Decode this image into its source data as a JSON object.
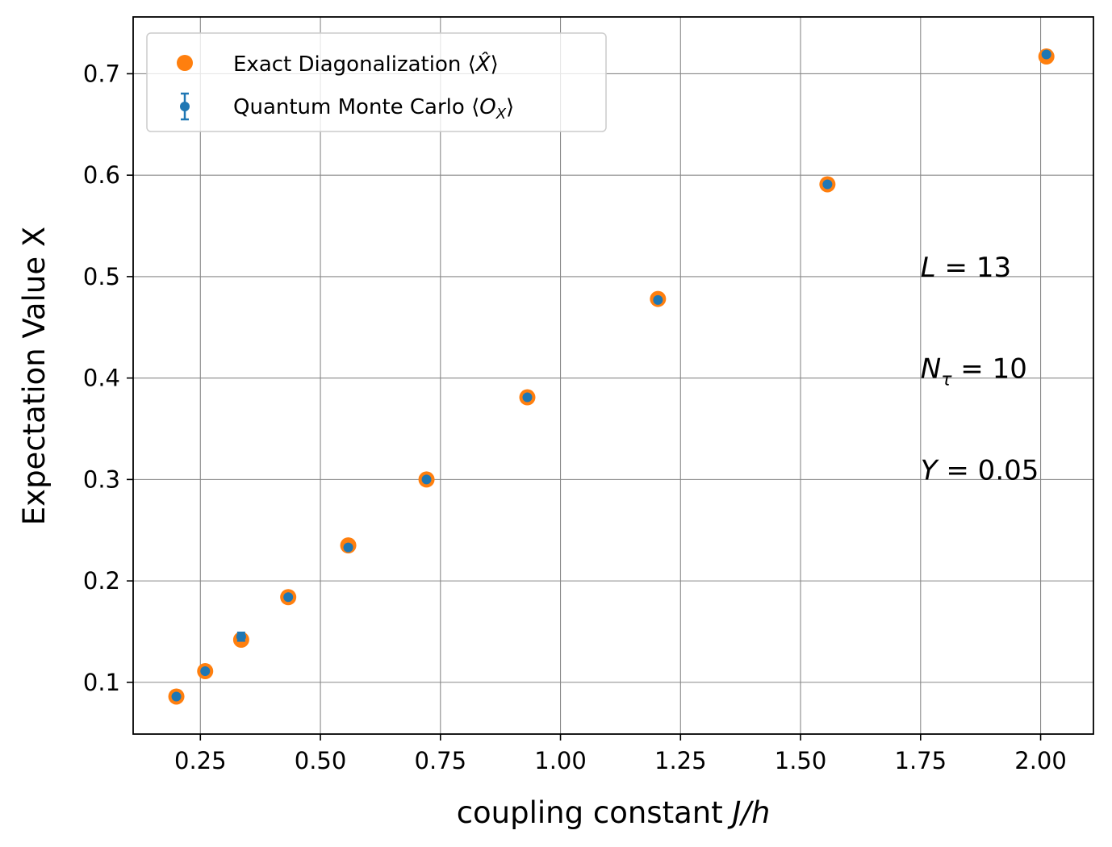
{
  "chart_data": {
    "type": "scatter",
    "xlabel": {
      "text": "coupling constant ",
      "var": "J/h"
    },
    "ylabel": "Expectation Value X",
    "xlim": [
      0.11,
      2.11
    ],
    "ylim": [
      0.049,
      0.756
    ],
    "x_ticks": [
      0.25,
      0.5,
      0.75,
      1.0,
      1.25,
      1.5,
      1.75,
      2.0
    ],
    "x_tick_labels": [
      "0.25",
      "0.50",
      "0.75",
      "1.00",
      "1.25",
      "1.50",
      "1.75",
      "2.00"
    ],
    "y_ticks": [
      0.1,
      0.2,
      0.3,
      0.4,
      0.5,
      0.6,
      0.7
    ],
    "y_tick_labels": [
      "0.1",
      "0.2",
      "0.3",
      "0.4",
      "0.5",
      "0.6",
      "0.7"
    ],
    "grid": true,
    "legend_position": "top-left",
    "series": [
      {
        "name": "Exact Diagonalization ⟨X̂⟩",
        "label_main": "Exact Diagonalization ⟨",
        "label_var": "X̂",
        "label_end": "⟩",
        "color": "#ff7f0e",
        "marker": "circle",
        "x": [
          0.2,
          0.26,
          0.335,
          0.433,
          0.558,
          0.721,
          0.931,
          1.203,
          1.556,
          2.012
        ],
        "y": [
          0.086,
          0.111,
          0.142,
          0.184,
          0.235,
          0.3,
          0.381,
          0.478,
          0.591,
          0.717
        ]
      },
      {
        "name": "Quantum Monte Carlo ⟨O_X⟩",
        "label_main": "Quantum Monte Carlo ⟨",
        "label_var": "O",
        "label_sub": "X",
        "label_end": "⟩",
        "color": "#1f77b4",
        "marker": "point-with-errorbar",
        "x": [
          0.2,
          0.26,
          0.335,
          0.433,
          0.558,
          0.721,
          0.931,
          1.203,
          1.556,
          2.012
        ],
        "y": [
          0.086,
          0.111,
          0.145,
          0.184,
          0.233,
          0.3,
          0.381,
          0.477,
          0.591,
          0.719
        ],
        "yerr": [
          0.001,
          0.001,
          0.004,
          0.001,
          0.002,
          0.001,
          0.001,
          0.001,
          0.001,
          0.001
        ]
      }
    ],
    "annotations": [
      {
        "var": "L",
        "sub": "",
        "rest": " = 13",
        "x": 1.75,
        "y": 0.5
      },
      {
        "var": "N",
        "sub": "τ",
        "rest": " = 10",
        "x": 1.75,
        "y": 0.4
      },
      {
        "var": "Y",
        "sub": "",
        "rest": " = 0.05",
        "x": 1.75,
        "y": 0.3
      }
    ]
  }
}
